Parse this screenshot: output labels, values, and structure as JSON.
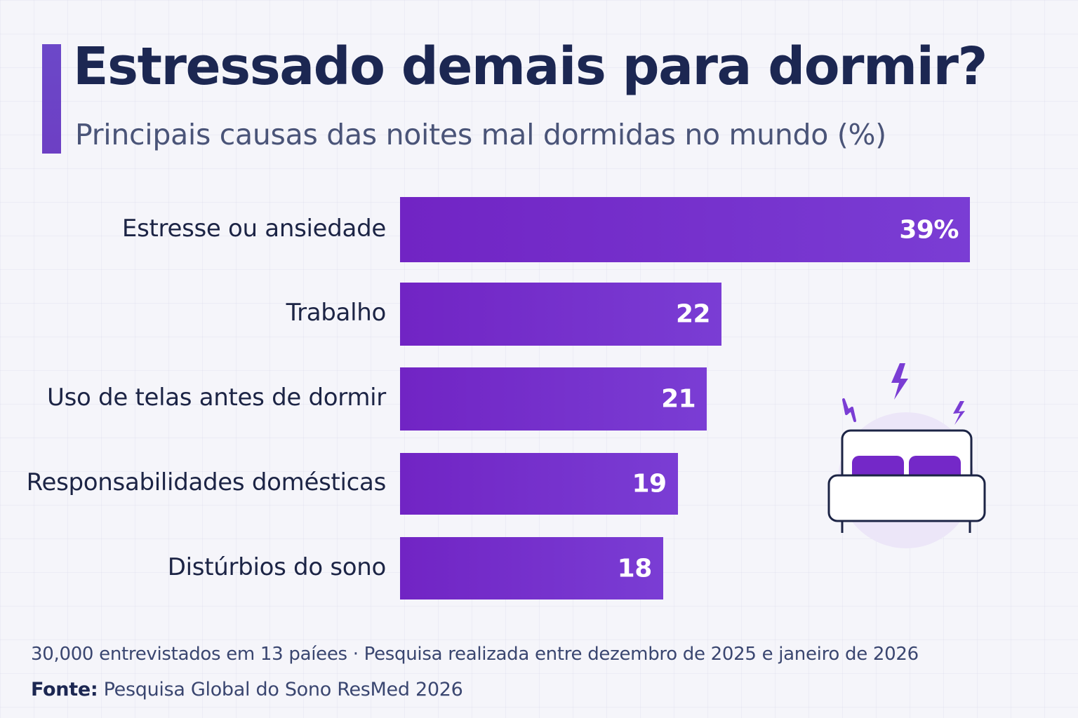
{
  "header": {
    "title": "Estressado demais para dormir?",
    "subtitle": "Principais causas das noites mal dormidas no mundo (%)"
  },
  "chart_data": {
    "type": "bar",
    "orientation": "horizontal",
    "title": "Estressado demais para dormir?",
    "subtitle": "Principais causas das noites mal dormidas no mundo (%)",
    "xlabel": "",
    "ylabel": "",
    "unit": "%",
    "categories": [
      "Estresse ou ansiedade",
      "Trabalho",
      "Uso de telas antes de dormir",
      "Responsabilidades domésticas",
      "Distúrbios do sono"
    ],
    "values": [
      39,
      22,
      21,
      19,
      18
    ],
    "data_labels": [
      "39%",
      "22",
      "21",
      "19",
      "18"
    ],
    "xlim": [
      0,
      39
    ],
    "grid": false,
    "legend": "none",
    "bar_color": "#7428c8"
  },
  "illustration": {
    "icon": "bed-with-lightning-icon",
    "accent_color": "#7a3dd4"
  },
  "footer": {
    "note": "30,000 entrevistados em 13 paíees · Pesquisa realizada entre dezembro de 2025 e janeiro de 2026",
    "source_label": "Fonte:",
    "source_text": " Pesquisa Global do Sono ResMed 2026"
  }
}
